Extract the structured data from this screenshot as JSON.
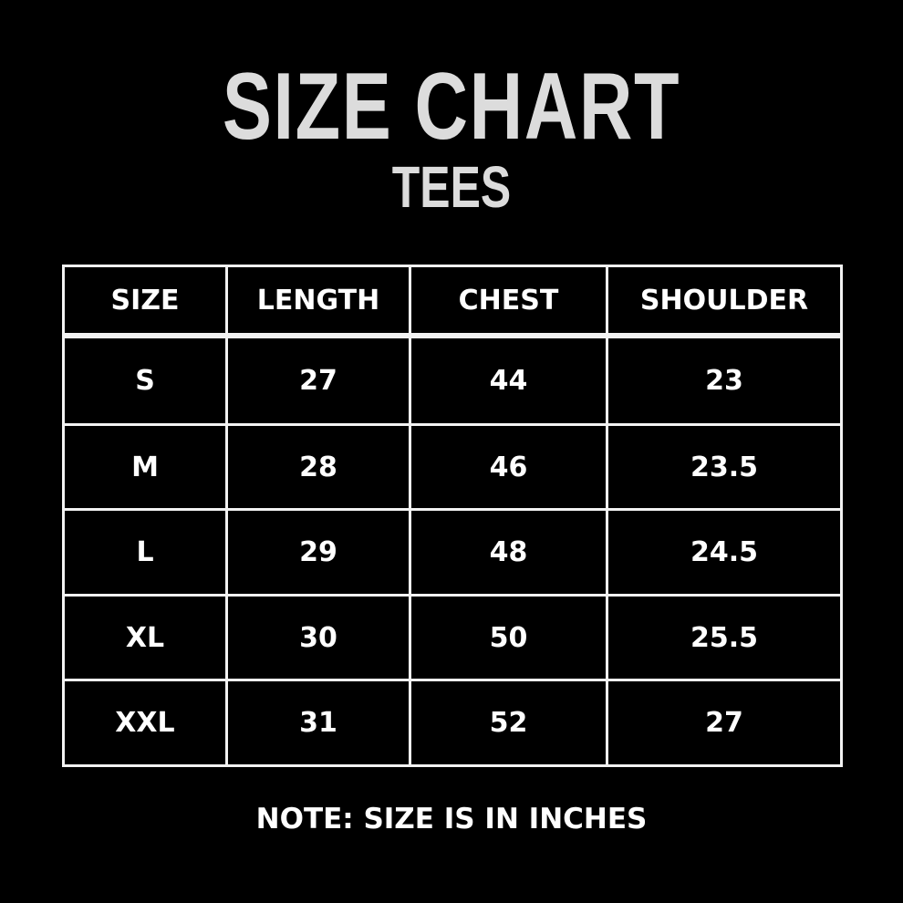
{
  "title": "SIZE CHART",
  "subtitle": "TEES",
  "chart_data": {
    "type": "table",
    "columns": [
      "SIZE",
      "LENGTH",
      "CHEST",
      "SHOULDER"
    ],
    "rows": [
      [
        "S",
        "27",
        "44",
        "23"
      ],
      [
        "M",
        "28",
        "46",
        "23.5"
      ],
      [
        "L",
        "29",
        "48",
        "24.5"
      ],
      [
        "XL",
        "30",
        "50",
        "25.5"
      ],
      [
        "XXL",
        "31",
        "52",
        "27"
      ]
    ]
  },
  "note": "NOTE: SIZE IS IN INCHES",
  "colors": {
    "background": "#000000",
    "text": "#ffffff",
    "title": "#dcdcdc",
    "border": "#f2f2f2"
  }
}
